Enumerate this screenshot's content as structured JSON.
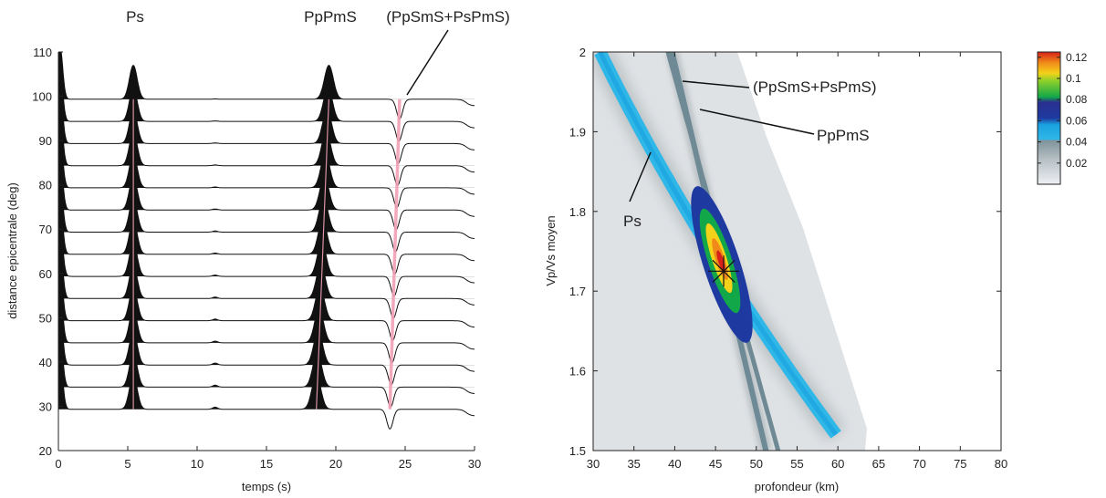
{
  "chart_data": [
    {
      "type": "line",
      "xlabel": "temps (s)",
      "ylabel": "distance epicentrale (deg)",
      "xlim": [
        0,
        30
      ],
      "ylim": [
        20,
        110
      ],
      "x_ticks": [
        "0",
        "5",
        "10",
        "15",
        "20",
        "25",
        "30"
      ],
      "y_ticks": [
        "20",
        "30",
        "40",
        "50",
        "60",
        "70",
        "80",
        "90",
        "100",
        "110"
      ],
      "phase_labels": [
        "Ps",
        "PpPmS",
        "(PpSmS+PsPmS)"
      ],
      "phase_times_s": [
        5.4,
        19.5,
        24.6
      ],
      "traces": {
        "distances_deg": [
          25,
          30,
          35,
          40,
          45,
          50,
          55,
          60,
          65,
          70,
          75,
          80,
          85,
          90,
          95
        ],
        "description_values": {
          "direct_P_time_s": 0,
          "ps_time_s": 5.4,
          "pppms_time_s": 19.5,
          "ppsms_time_s": 24.6,
          "late_wiggle_time_s": 11.3
        }
      }
    },
    {
      "type": "heatmap",
      "xlabel": "profondeur (km)",
      "ylabel": "Vp/Vs moyen",
      "xlim": [
        30,
        80
      ],
      "ylim": [
        1.5,
        2.0
      ],
      "x_ticks": [
        "30",
        "35",
        "40",
        "45",
        "50",
        "55",
        "60",
        "65",
        "70",
        "75",
        "80"
      ],
      "y_ticks": [
        "1.5",
        "1.6",
        "1.7",
        "1.8",
        "1.9",
        "2"
      ],
      "annotations": [
        "(PpSmS+PsPmS)",
        "PpPmS",
        "Ps"
      ],
      "maximum": {
        "depth_km": 46,
        "vpvs": 1.725
      },
      "colorbar": {
        "min": 0,
        "max": 0.125,
        "ticks": [
          "0.02",
          "0.04",
          "0.06",
          "0.08",
          "0.1",
          "0.12"
        ],
        "colors": [
          "#eef0f3",
          "#9aa7ad",
          "#2fb7e8",
          "#1e3aa0",
          "#12a84a",
          "#f4d21a",
          "#d8201a"
        ]
      }
    }
  ]
}
